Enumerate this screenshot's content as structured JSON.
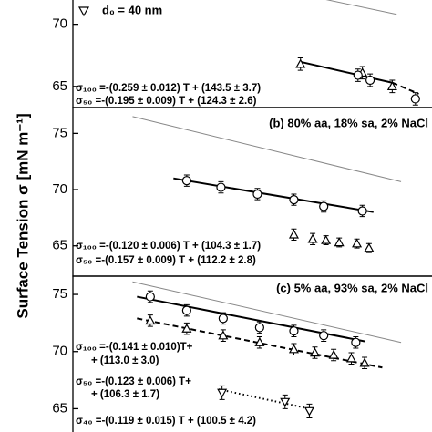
{
  "y_label": "Surface Tension σ [mN m⁻¹]",
  "chart_data": [
    {
      "type": "scatter",
      "legend_text": "d₀ = 40 nm",
      "equations": [
        "σ₁₀₀ =-(0.259 ± 0.012) T + (143.5 ± 3.7)",
        "σ₅₀ =-(0.195 ± 0.009) T + (124.3 ± 2.6)"
      ],
      "xlim": [
        275.5,
        308
      ],
      "ylim": [
        63.3,
        72.1
      ],
      "yticks": [
        65,
        70
      ],
      "series": [
        {
          "style": "thin",
          "color": "#888888",
          "x": [
            297.8,
            304.8
          ],
          "values": [
            72.1,
            70.8
          ]
        },
        {
          "style": "solid",
          "color": "#000000",
          "x": [
            296.0,
            304.4
          ],
          "values": [
            67.0,
            65.3
          ]
        },
        {
          "style": "dashed",
          "color": "#000000",
          "x": [
            304.4,
            306.8
          ],
          "values": [
            65.3,
            64.4
          ]
        },
        {
          "style": "triangle-up",
          "color": "#000000",
          "x": [
            296.1,
            301.7,
            304.4
          ],
          "values": [
            66.8,
            66.1,
            65.0
          ],
          "errors": [
            0.5,
            0.5,
            0.5
          ]
        },
        {
          "style": "circle",
          "color": "#000000",
          "x": [
            301.3,
            302.4,
            306.5
          ],
          "values": [
            65.9,
            65.5,
            64.0
          ],
          "errors": [
            0.5,
            0.5,
            0.5
          ]
        }
      ]
    },
    {
      "type": "scatter",
      "title": "(b)  80% aa, 18% sa, 2% NaCl",
      "equations": [
        "σ₁₀₀ =-(0.120 ± 0.006) T + (104.3 ± 1.7)",
        "σ₅₀ =-(0.157 ± 0.009) T + (112.2 ± 2.8)"
      ],
      "xlim": [
        275.5,
        308
      ],
      "ylim": [
        62.3,
        77.3
      ],
      "yticks": [
        65,
        70,
        75
      ],
      "series": [
        {
          "style": "thin",
          "color": "#888888",
          "x": [
            280.9,
            305.2
          ],
          "values": [
            76.5,
            70.7
          ]
        },
        {
          "style": "solid",
          "color": "#000000",
          "x": [
            284.6,
            302.7
          ],
          "values": [
            71.0,
            68.0
          ]
        },
        {
          "style": "circle",
          "color": "#000000",
          "x": [
            285.8,
            288.9,
            292.2,
            295.5,
            298.2,
            301.7
          ],
          "values": [
            70.8,
            70.2,
            69.6,
            69.1,
            68.5,
            68.1
          ],
          "errors": [
            0.5,
            0.5,
            0.5,
            0.5,
            0.5,
            0.5
          ]
        },
        {
          "style": "triangle-up",
          "color": "#000000",
          "x": [
            295.5,
            297.2,
            298.4,
            299.6,
            301.2,
            302.3
          ],
          "values": [
            66.0,
            65.6,
            65.5,
            65.3,
            65.2,
            64.8
          ],
          "errors": [
            0.5,
            0.5,
            0.4,
            0.4,
            0.4,
            0.4
          ]
        }
      ]
    },
    {
      "type": "scatter",
      "title": "(c)  5% aa, 93% sa, 2% NaCl",
      "equations": [
        "σ₁₀₀ =-(0.141 ± 0.010)T+",
        "+ (113.0 ± 3.0)",
        "σ₅₀ =-(0.123 ± 0.006) T+",
        "+ (106.3 ± 1.7)",
        "σ₄₀ =-(0.119 ± 0.015) T + (100.5 ± 4.2)"
      ],
      "xlim": [
        275.5,
        308
      ],
      "ylim": [
        62.8,
        76.6
      ],
      "yticks": [
        65,
        70,
        75
      ],
      "series": [
        {
          "style": "thin",
          "color": "#888888",
          "x": [
            280.9,
            305.2
          ],
          "values": [
            76.1,
            70.8
          ]
        },
        {
          "style": "solid",
          "color": "#000000",
          "x": [
            281.3,
            301.9
          ],
          "values": [
            74.8,
            70.9
          ]
        },
        {
          "style": "dashed",
          "color": "#000000",
          "x": [
            281.3,
            303.5
          ],
          "values": [
            72.9,
            68.6
          ]
        },
        {
          "style": "dotted",
          "color": "#000000",
          "x": [
            288.7,
            296.9
          ],
          "values": [
            66.7,
            65.0
          ]
        },
        {
          "style": "circle",
          "color": "#000000",
          "x": [
            282.5,
            285.8,
            289.1,
            292.4,
            295.5,
            298.2,
            301.1
          ],
          "values": [
            74.8,
            73.6,
            72.9,
            72.1,
            71.8,
            71.4,
            70.8
          ],
          "errors": [
            0.5,
            0.5,
            0.5,
            0.5,
            0.5,
            0.5,
            0.5
          ]
        },
        {
          "style": "triangle-up",
          "color": "#000000",
          "x": [
            282.5,
            285.8,
            289.1,
            292.4,
            295.5,
            297.4,
            299.1,
            300.7,
            301.9
          ],
          "values": [
            72.7,
            72.0,
            71.4,
            70.8,
            70.2,
            69.9,
            69.7,
            69.4,
            69.0
          ],
          "errors": [
            0.5,
            0.5,
            0.5,
            0.5,
            0.5,
            0.5,
            0.5,
            0.5,
            0.5
          ]
        },
        {
          "style": "triangle-down",
          "color": "#000000",
          "x": [
            289.0,
            294.7,
            296.9
          ],
          "values": [
            66.4,
            65.6,
            64.8
          ],
          "errors": [
            0.6,
            0.6,
            0.6
          ]
        }
      ]
    }
  ]
}
